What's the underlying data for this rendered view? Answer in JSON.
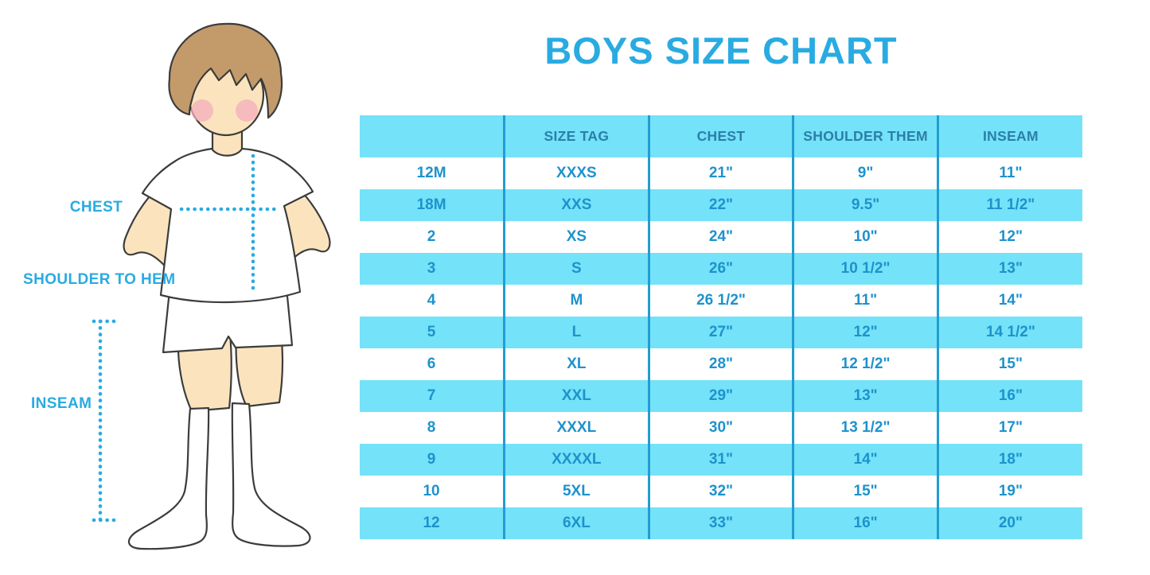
{
  "page": {
    "title": "BOYS SIZE CHART"
  },
  "illustration": {
    "figure": "boy-front-white-tee-shorts-knee-socks",
    "labels": {
      "chest": "CHEST",
      "shoulder_to_hem": "SHOULDER TO HEM",
      "inseam": "INSEAM"
    }
  },
  "colors": {
    "accent_blue": "#29ABE2",
    "table_cyan": "#74E2F8",
    "separator_blue": "#219DD1",
    "header_text": "#2B7FA8",
    "cell_text": "#1E92CC",
    "skin": "#FBE4BD",
    "hair": "#C39B6B",
    "outline": "#3C3C3C"
  },
  "chart_data": {
    "type": "table",
    "title": "BOYS SIZE CHART",
    "columns": [
      "",
      "SIZE TAG",
      "CHEST",
      "SHOULDER THEM",
      "INSEAM"
    ],
    "rows": [
      [
        "12M",
        "XXXS",
        "21\"",
        "9\"",
        "11\""
      ],
      [
        "18M",
        "XXS",
        "22\"",
        "9.5\"",
        "11 1/2\""
      ],
      [
        "2",
        "XS",
        "24\"",
        "10\"",
        "12\""
      ],
      [
        "3",
        "S",
        "26\"",
        "10 1/2\"",
        "13\""
      ],
      [
        "4",
        "M",
        "26 1/2\"",
        "11\"",
        "14\""
      ],
      [
        "5",
        "L",
        "27\"",
        "12\"",
        "14 1/2\""
      ],
      [
        "6",
        "XL",
        "28\"",
        "12 1/2\"",
        "15\""
      ],
      [
        "7",
        "XXL",
        "29\"",
        "13\"",
        "16\""
      ],
      [
        "8",
        "XXXL",
        "30\"",
        "13 1/2\"",
        "17\""
      ],
      [
        "9",
        "XXXXL",
        "31\"",
        "14\"",
        "18\""
      ],
      [
        "10",
        "5XL",
        "32\"",
        "15\"",
        "19\""
      ],
      [
        "12",
        "6XL",
        "33\"",
        "16\"",
        "20\""
      ]
    ],
    "layout": {
      "row_striping": [
        "white",
        "cyan"
      ],
      "header_background": "cyan",
      "gridlines": "vertical-only"
    }
  }
}
